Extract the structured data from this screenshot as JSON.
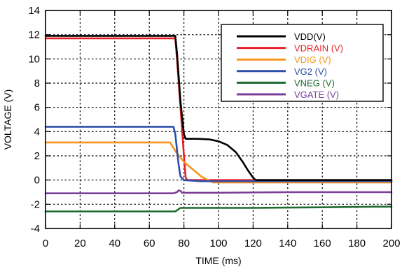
{
  "chart_data": {
    "type": "line",
    "title": "",
    "xlabel": "TIME (ms)",
    "ylabel": "VOLTAGE (V)",
    "xlim": [
      0,
      200
    ],
    "ylim": [
      -4,
      14
    ],
    "xticks": [
      0,
      20,
      40,
      60,
      80,
      100,
      120,
      140,
      160,
      180,
      200
    ],
    "yticks": [
      -4,
      -2,
      0,
      2,
      4,
      6,
      8,
      10,
      12,
      14
    ],
    "grid": true,
    "legend_position": "top-right",
    "series": [
      {
        "name": "VDD(V)",
        "color": "#000000",
        "x": [
          0,
          75,
          76,
          78,
          80,
          81,
          88,
          95,
          100,
          105,
          110,
          114,
          117,
          120,
          121,
          122,
          125,
          200
        ],
        "y": [
          11.9,
          11.9,
          10.5,
          6.5,
          3.8,
          3.4,
          3.4,
          3.35,
          3.2,
          2.9,
          2.3,
          1.5,
          0.8,
          0.2,
          0.05,
          0.0,
          0.0,
          0.0
        ]
      },
      {
        "name": "VDRAIN (V)",
        "color": "#e8202a",
        "x": [
          0,
          75,
          76,
          78,
          80,
          81,
          82,
          200
        ],
        "y": [
          11.7,
          11.7,
          10.0,
          6.0,
          2.0,
          0.2,
          0.0,
          0.0
        ]
      },
      {
        "name": "VDIG (V)",
        "color": "#f7941d",
        "x": [
          0,
          72,
          76,
          80,
          85,
          90,
          95,
          97,
          98,
          200
        ],
        "y": [
          3.1,
          3.1,
          2.2,
          1.5,
          0.9,
          0.3,
          -0.1,
          -0.2,
          -0.2,
          -0.2
        ]
      },
      {
        "name": "VG2 (V)",
        "color": "#2e4eab",
        "x": [
          0,
          74,
          75,
          76,
          77,
          78,
          80,
          84,
          90,
          200
        ],
        "y": [
          4.4,
          4.4,
          3.8,
          2.5,
          1.2,
          0.3,
          0.0,
          -0.05,
          -0.1,
          -0.1
        ]
      },
      {
        "name": "VNEG (V)",
        "color": "#1f6b2f",
        "x": [
          0,
          75,
          77,
          78,
          82,
          120,
          160,
          190,
          200
        ],
        "y": [
          -2.6,
          -2.6,
          -2.4,
          -2.3,
          -2.3,
          -2.3,
          -2.25,
          -2.2,
          -2.2
        ]
      },
      {
        "name": "VGATE (V)",
        "color": "#7b3f98",
        "x": [
          0,
          74,
          76,
          77,
          78,
          79,
          80,
          100,
          140,
          200
        ],
        "y": [
          -1.1,
          -1.1,
          -1.0,
          -0.85,
          -0.9,
          -1.05,
          -1.05,
          -1.05,
          -1.0,
          -1.0
        ]
      }
    ]
  }
}
